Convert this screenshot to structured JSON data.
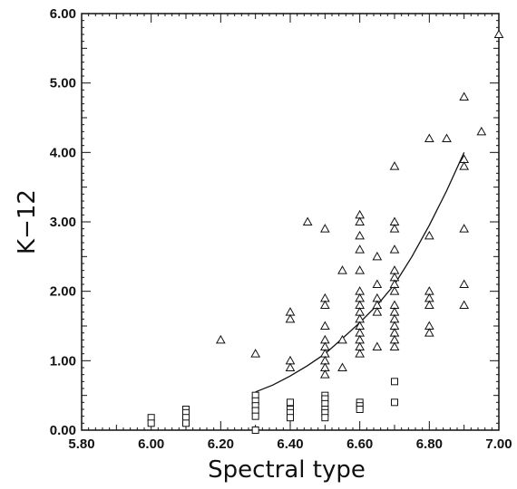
{
  "chart_data": {
    "type": "scatter",
    "xlabel": "Spectral type",
    "ylabel": "K−12",
    "xlim": [
      5.8,
      7.0
    ],
    "ylim": [
      0.0,
      6.0
    ],
    "x_ticks": [
      "5.80",
      "6.00",
      "6.20",
      "6.40",
      "6.60",
      "6.80",
      "7.00"
    ],
    "y_ticks": [
      "0.00",
      "1.00",
      "2.00",
      "3.00",
      "4.00",
      "5.00",
      "6.00"
    ],
    "grid": false,
    "series": [
      {
        "marker": "square",
        "points": [
          [
            6.0,
            0.18
          ],
          [
            6.0,
            0.1
          ],
          [
            6.1,
            0.3
          ],
          [
            6.1,
            0.25
          ],
          [
            6.1,
            0.18
          ],
          [
            6.1,
            0.1
          ],
          [
            6.3,
            0.5
          ],
          [
            6.3,
            0.42
          ],
          [
            6.3,
            0.35
          ],
          [
            6.3,
            0.28
          ],
          [
            6.3,
            0.2
          ],
          [
            6.3,
            0.0
          ],
          [
            6.4,
            0.4
          ],
          [
            6.4,
            0.3
          ],
          [
            6.4,
            0.25
          ],
          [
            6.4,
            0.18
          ],
          [
            6.5,
            0.5
          ],
          [
            6.5,
            0.45
          ],
          [
            6.5,
            0.38
          ],
          [
            6.5,
            0.3
          ],
          [
            6.5,
            0.25
          ],
          [
            6.5,
            0.18
          ],
          [
            6.6,
            0.4
          ],
          [
            6.6,
            0.35
          ],
          [
            6.6,
            0.3
          ],
          [
            6.7,
            0.7
          ],
          [
            6.7,
            0.4
          ]
        ]
      },
      {
        "marker": "triangle",
        "points": [
          [
            6.2,
            1.3
          ],
          [
            6.3,
            1.1
          ],
          [
            6.4,
            1.7
          ],
          [
            6.4,
            1.6
          ],
          [
            6.4,
            1.0
          ],
          [
            6.4,
            0.9
          ],
          [
            6.45,
            3.0
          ],
          [
            6.5,
            2.9
          ],
          [
            6.5,
            1.9
          ],
          [
            6.5,
            1.8
          ],
          [
            6.5,
            1.5
          ],
          [
            6.5,
            1.3
          ],
          [
            6.5,
            1.2
          ],
          [
            6.5,
            1.1
          ],
          [
            6.5,
            1.0
          ],
          [
            6.5,
            0.9
          ],
          [
            6.5,
            0.8
          ],
          [
            6.55,
            2.3
          ],
          [
            6.55,
            1.3
          ],
          [
            6.55,
            0.9
          ],
          [
            6.6,
            3.1
          ],
          [
            6.6,
            3.0
          ],
          [
            6.6,
            2.8
          ],
          [
            6.6,
            2.6
          ],
          [
            6.6,
            2.3
          ],
          [
            6.6,
            2.0
          ],
          [
            6.6,
            1.9
          ],
          [
            6.6,
            1.8
          ],
          [
            6.6,
            1.7
          ],
          [
            6.6,
            1.6
          ],
          [
            6.6,
            1.5
          ],
          [
            6.6,
            1.4
          ],
          [
            6.6,
            1.3
          ],
          [
            6.6,
            1.2
          ],
          [
            6.6,
            1.1
          ],
          [
            6.65,
            2.5
          ],
          [
            6.65,
            2.1
          ],
          [
            6.65,
            1.9
          ],
          [
            6.65,
            1.8
          ],
          [
            6.65,
            1.7
          ],
          [
            6.65,
            1.2
          ],
          [
            6.7,
            3.8
          ],
          [
            6.7,
            3.0
          ],
          [
            6.7,
            2.9
          ],
          [
            6.7,
            2.6
          ],
          [
            6.7,
            2.3
          ],
          [
            6.7,
            2.2
          ],
          [
            6.7,
            2.1
          ],
          [
            6.7,
            2.0
          ],
          [
            6.7,
            1.8
          ],
          [
            6.7,
            1.7
          ],
          [
            6.7,
            1.6
          ],
          [
            6.7,
            1.5
          ],
          [
            6.7,
            1.4
          ],
          [
            6.7,
            1.3
          ],
          [
            6.7,
            1.2
          ],
          [
            6.8,
            4.2
          ],
          [
            6.8,
            2.8
          ],
          [
            6.8,
            2.0
          ],
          [
            6.8,
            1.9
          ],
          [
            6.8,
            1.8
          ],
          [
            6.8,
            1.5
          ],
          [
            6.8,
            1.4
          ],
          [
            6.85,
            4.2
          ],
          [
            6.9,
            4.8
          ],
          [
            6.9,
            3.9
          ],
          [
            6.9,
            3.8
          ],
          [
            6.9,
            2.9
          ],
          [
            6.9,
            2.1
          ],
          [
            6.9,
            1.8
          ],
          [
            6.95,
            4.3
          ],
          [
            7.0,
            5.7
          ]
        ]
      }
    ],
    "fit_curve": [
      [
        6.3,
        0.55
      ],
      [
        6.35,
        0.65
      ],
      [
        6.4,
        0.78
      ],
      [
        6.45,
        0.93
      ],
      [
        6.5,
        1.1
      ],
      [
        6.55,
        1.32
      ],
      [
        6.6,
        1.55
      ],
      [
        6.65,
        1.8
      ],
      [
        6.7,
        2.1
      ],
      [
        6.75,
        2.5
      ],
      [
        6.8,
        2.95
      ],
      [
        6.85,
        3.45
      ],
      [
        6.9,
        4.0
      ]
    ]
  }
}
